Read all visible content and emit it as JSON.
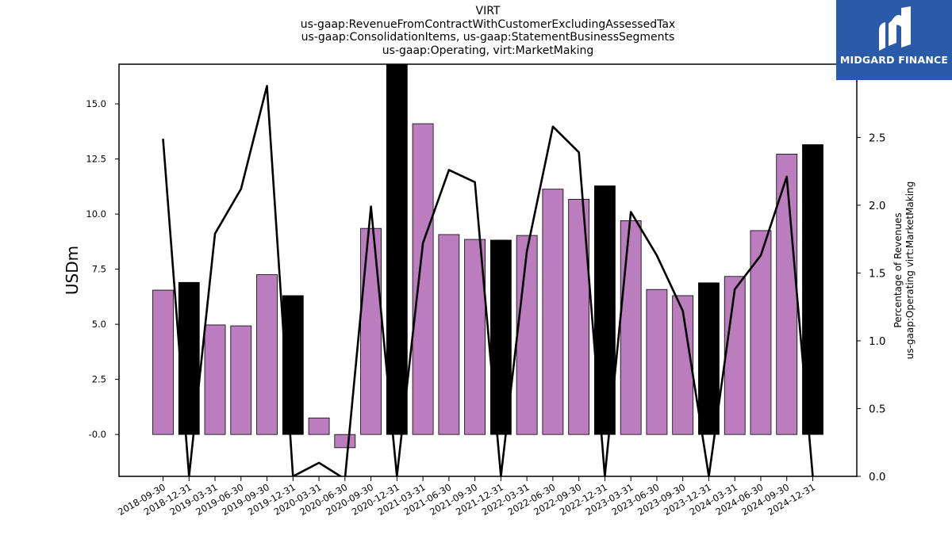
{
  "title_lines": [
    "VIRT",
    "us-gaap:RevenueFromContractWithCustomerExcludingAssessedTax",
    "us-gaap:ConsolidationItems, us-gaap:StatementBusinessSegments",
    "us-gaap:Operating, virt:MarketMaking"
  ],
  "logo": {
    "text": "MIDGARD FINANCE",
    "background": "#2b5aa8"
  },
  "chart_data": {
    "type": "bar",
    "categories": [
      "2018-09-30",
      "2018-12-31",
      "2019-03-31",
      "2019-06-30",
      "2019-09-30",
      "2019-12-31",
      "2020-03-31",
      "2020-06-30",
      "2020-09-30",
      "2020-12-31",
      "2021-03-31",
      "2021-06-30",
      "2021-09-30",
      "2021-12-31",
      "2022-03-31",
      "2022-06-30",
      "2022-09-30",
      "2022-12-31",
      "2023-03-31",
      "2023-06-30",
      "2023-09-30",
      "2023-12-31",
      "2024-03-31",
      "2024-06-30",
      "2024-09-30",
      "2024-12-31"
    ],
    "bar_values": [
      6.55,
      6.9,
      4.97,
      4.93,
      7.25,
      6.3,
      0.75,
      -0.6,
      9.35,
      16.8,
      14.1,
      9.07,
      8.85,
      8.82,
      9.03,
      11.13,
      10.67,
      11.28,
      9.7,
      6.58,
      6.3,
      6.88,
      7.17,
      9.25,
      12.72,
      13.15
    ],
    "bar_colors": [
      "#bb7dbd",
      "#000000",
      "#bb7dbd",
      "#bb7dbd",
      "#bb7dbd",
      "#000000",
      "#bb7dbd",
      "#bb7dbd",
      "#bb7dbd",
      "#000000",
      "#bb7dbd",
      "#bb7dbd",
      "#bb7dbd",
      "#000000",
      "#bb7dbd",
      "#bb7dbd",
      "#bb7dbd",
      "#000000",
      "#bb7dbd",
      "#bb7dbd",
      "#bb7dbd",
      "#000000",
      "#bb7dbd",
      "#bb7dbd",
      "#bb7dbd",
      "#000000"
    ],
    "line_values": [
      2.49,
      0.0,
      1.79,
      2.12,
      2.88,
      0.0,
      0.1,
      -0.02,
      1.99,
      0.0,
      1.72,
      2.26,
      2.17,
      0.0,
      1.66,
      2.58,
      2.39,
      0.0,
      1.95,
      1.63,
      1.22,
      0.0,
      1.38,
      1.63,
      2.21,
      0.0
    ],
    "ylabel": "USDm",
    "y2label_lines": [
      "Percentage of Revenues",
      "us-gaap:Operating virt:MarketMaking"
    ],
    "ylim": [
      -1.9,
      16.8
    ],
    "y2lim": [
      0.0,
      3.04
    ],
    "yticks": [
      "-0.0",
      "2.5",
      "5.0",
      "7.5",
      "10.0",
      "12.5",
      "15.0"
    ],
    "ytick_values": [
      0,
      2.5,
      5,
      7.5,
      10,
      12.5,
      15
    ],
    "y2ticks": [
      "0.0",
      "0.5",
      "1.0",
      "1.5",
      "2.0",
      "2.5"
    ],
    "y2tick_values": [
      0,
      0.5,
      1,
      1.5,
      2,
      2.5
    ],
    "grid": false
  }
}
